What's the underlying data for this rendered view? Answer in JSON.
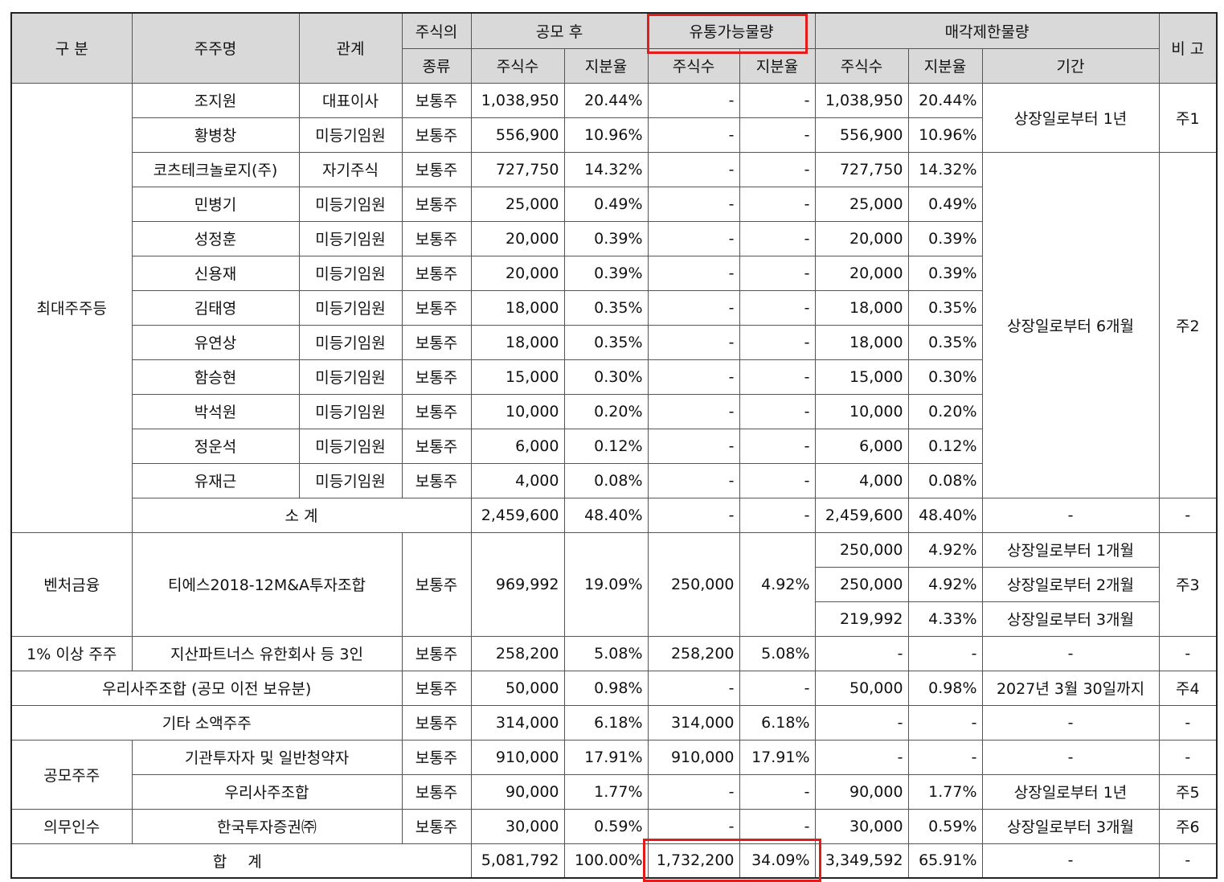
{
  "headers": {
    "category": "구 분",
    "holder": "주주명",
    "relation": "관계",
    "stock_type_top": "주식의",
    "stock_type_bottom": "종류",
    "after_ipo": "공모 후",
    "tradable": "유통가능물량",
    "restricted": "매각제한물량",
    "note": "비 고",
    "shares": "주식수",
    "ratio": "지분율",
    "period": "기간"
  },
  "major": {
    "category": "최대주주등",
    "rows": [
      {
        "name": "조지원",
        "rel": "대표이사",
        "type": "보통주",
        "shares": "1,038,950",
        "ratio": "20.44%",
        "t_shares": "-",
        "t_ratio": "-",
        "r_shares": "1,038,950",
        "r_ratio": "20.44%"
      },
      {
        "name": "황병창",
        "rel": "미등기임원",
        "type": "보통주",
        "shares": "556,900",
        "ratio": "10.96%",
        "t_shares": "-",
        "t_ratio": "-",
        "r_shares": "556,900",
        "r_ratio": "10.96%"
      },
      {
        "name": "코츠테크놀로지(주)",
        "rel": "자기주식",
        "type": "보통주",
        "shares": "727,750",
        "ratio": "14.32%",
        "t_shares": "-",
        "t_ratio": "-",
        "r_shares": "727,750",
        "r_ratio": "14.32%"
      },
      {
        "name": "민병기",
        "rel": "미등기임원",
        "type": "보통주",
        "shares": "25,000",
        "ratio": "0.49%",
        "t_shares": "-",
        "t_ratio": "-",
        "r_shares": "25,000",
        "r_ratio": "0.49%"
      },
      {
        "name": "성정훈",
        "rel": "미등기임원",
        "type": "보통주",
        "shares": "20,000",
        "ratio": "0.39%",
        "t_shares": "-",
        "t_ratio": "-",
        "r_shares": "20,000",
        "r_ratio": "0.39%"
      },
      {
        "name": "신용재",
        "rel": "미등기임원",
        "type": "보통주",
        "shares": "20,000",
        "ratio": "0.39%",
        "t_shares": "-",
        "t_ratio": "-",
        "r_shares": "20,000",
        "r_ratio": "0.39%"
      },
      {
        "name": "김태영",
        "rel": "미등기임원",
        "type": "보통주",
        "shares": "18,000",
        "ratio": "0.35%",
        "t_shares": "-",
        "t_ratio": "-",
        "r_shares": "18,000",
        "r_ratio": "0.35%"
      },
      {
        "name": "유연상",
        "rel": "미등기임원",
        "type": "보통주",
        "shares": "18,000",
        "ratio": "0.35%",
        "t_shares": "-",
        "t_ratio": "-",
        "r_shares": "18,000",
        "r_ratio": "0.35%"
      },
      {
        "name": "함승현",
        "rel": "미등기임원",
        "type": "보통주",
        "shares": "15,000",
        "ratio": "0.30%",
        "t_shares": "-",
        "t_ratio": "-",
        "r_shares": "15,000",
        "r_ratio": "0.30%"
      },
      {
        "name": "박석원",
        "rel": "미등기임원",
        "type": "보통주",
        "shares": "10,000",
        "ratio": "0.20%",
        "t_shares": "-",
        "t_ratio": "-",
        "r_shares": "10,000",
        "r_ratio": "0.20%"
      },
      {
        "name": "정운석",
        "rel": "미등기임원",
        "type": "보통주",
        "shares": "6,000",
        "ratio": "0.12%",
        "t_shares": "-",
        "t_ratio": "-",
        "r_shares": "6,000",
        "r_ratio": "0.12%"
      },
      {
        "name": "유재근",
        "rel": "미등기임원",
        "type": "보통주",
        "shares": "4,000",
        "ratio": "0.08%",
        "t_shares": "-",
        "t_ratio": "-",
        "r_shares": "4,000",
        "r_ratio": "0.08%"
      }
    ],
    "period_1": "상장일로부터 1년",
    "note_1": "주1",
    "period_2": "상장일로부터 6개월",
    "note_2": "주2",
    "subtotal": {
      "label": "소 계",
      "shares": "2,459,600",
      "ratio": "48.40%",
      "t_shares": "-",
      "t_ratio": "-",
      "r_shares": "2,459,600",
      "r_ratio": "48.40%",
      "period": "-",
      "note": "-"
    }
  },
  "venture": {
    "category": "벤처금융",
    "name": "티에스2018-12M&A투자조합",
    "type": "보통주",
    "shares": "969,992",
    "ratio": "19.09%",
    "t_shares": "250,000",
    "t_ratio": "4.92%",
    "note": "주3",
    "tranches": [
      {
        "r_shares": "250,000",
        "r_ratio": "4.92%",
        "period": "상장일로부터 1개월"
      },
      {
        "r_shares": "250,000",
        "r_ratio": "4.92%",
        "period": "상장일로부터 2개월"
      },
      {
        "r_shares": "219,992",
        "r_ratio": "4.33%",
        "period": "상장일로부터 3개월"
      }
    ]
  },
  "over1": {
    "category": "1% 이상 주주",
    "name": "지산파트너스 유한회사 등 3인",
    "type": "보통주",
    "shares": "258,200",
    "ratio": "5.08%",
    "t_shares": "258,200",
    "t_ratio": "5.08%",
    "r_shares": "-",
    "r_ratio": "-",
    "period": "-",
    "note": "-"
  },
  "esop_pre": {
    "label": "우리사주조합 (공모 이전 보유분)",
    "type": "보통주",
    "shares": "50,000",
    "ratio": "0.98%",
    "t_shares": "-",
    "t_ratio": "-",
    "r_shares": "50,000",
    "r_ratio": "0.98%",
    "period": "2027년 3월 30일까지",
    "note": "주4"
  },
  "minor": {
    "label": "기타 소액주주",
    "type": "보통주",
    "shares": "314,000",
    "ratio": "6.18%",
    "t_shares": "314,000",
    "t_ratio": "6.18%",
    "r_shares": "-",
    "r_ratio": "-",
    "period": "-",
    "note": "-"
  },
  "ipo": {
    "category": "공모주주",
    "rows": [
      {
        "name": "기관투자자 및 일반청약자",
        "type": "보통주",
        "shares": "910,000",
        "ratio": "17.91%",
        "t_shares": "910,000",
        "t_ratio": "17.91%",
        "r_shares": "-",
        "r_ratio": "-",
        "period": "-",
        "note": "-"
      },
      {
        "name": "우리사주조합",
        "type": "보통주",
        "shares": "90,000",
        "ratio": "1.77%",
        "t_shares": "-",
        "t_ratio": "-",
        "r_shares": "90,000",
        "r_ratio": "1.77%",
        "period": "상장일로부터 1년",
        "note": "주5"
      }
    ]
  },
  "underwrite": {
    "category": "의무인수",
    "name": "한국투자증권㈜",
    "type": "보통주",
    "shares": "30,000",
    "ratio": "0.59%",
    "t_shares": "-",
    "t_ratio": "-",
    "r_shares": "30,000",
    "r_ratio": "0.59%",
    "period": "상장일로부터 3개월",
    "note": "주6"
  },
  "total": {
    "label": "합 계",
    "shares": "5,081,792",
    "ratio": "100.00%",
    "t_shares": "1,732,200",
    "t_ratio": "34.09%",
    "r_shares": "3,349,592",
    "r_ratio": "65.91%",
    "period": "-",
    "note": "-"
  },
  "highlight_color": "#e31b1b",
  "header_bg": "#d9d9d9"
}
